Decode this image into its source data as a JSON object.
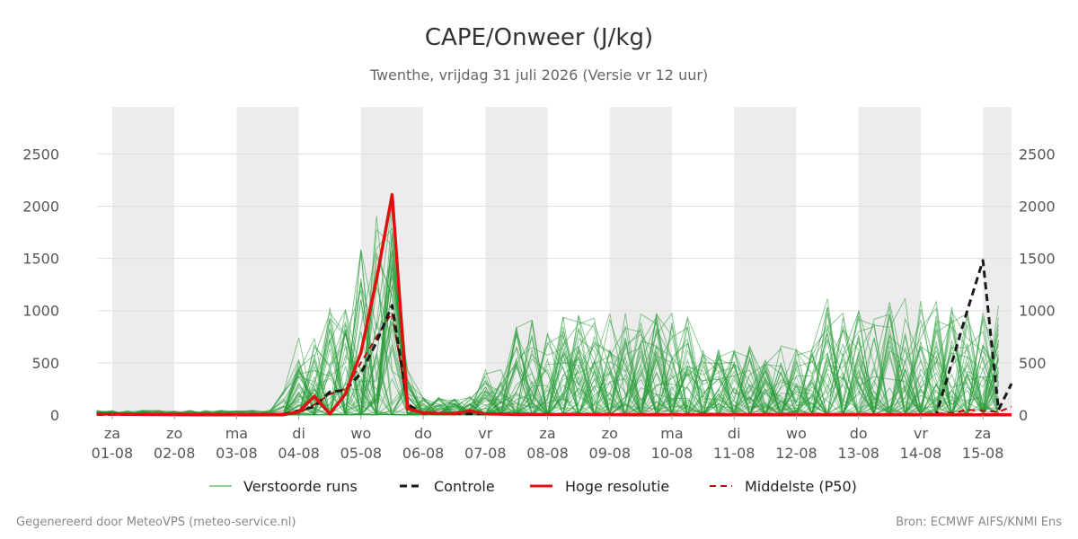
{
  "colors": {
    "band": "#ececec",
    "grid": "#dddddd",
    "member": "#2a9d3a",
    "control": "#1a1a1a",
    "hres": "#e01010",
    "median": "#b01010"
  },
  "footer": {
    "left": "Gegenereerd door MeteoVPS (meteo-service.nl)",
    "right": "Bron: ECMWF AIFS/KNMI Ens"
  },
  "chart_data": {
    "type": "line",
    "title": "CAPE/Onweer (J/kg)",
    "subtitle": "Twenthe, vrijdag 31 juli 2026 (Versie vr 12 uur)",
    "x_unit": "dag",
    "xlim": [
      -0.23,
      14.46
    ],
    "ylim": [
      0,
      2950
    ],
    "yticks": [
      0,
      500,
      1000,
      1500,
      2000,
      2500
    ],
    "grid": true,
    "legend_position": "bottom",
    "days": [
      {
        "day": "za",
        "date": "01-08"
      },
      {
        "day": "zo",
        "date": "02-08"
      },
      {
        "day": "ma",
        "date": "03-08"
      },
      {
        "day": "di",
        "date": "04-08"
      },
      {
        "day": "wo",
        "date": "05-08"
      },
      {
        "day": "do",
        "date": "06-08"
      },
      {
        "day": "vr",
        "date": "07-08"
      },
      {
        "day": "za",
        "date": "08-08"
      },
      {
        "day": "zo",
        "date": "09-08"
      },
      {
        "day": "ma",
        "date": "10-08"
      },
      {
        "day": "di",
        "date": "11-08"
      },
      {
        "day": "wo",
        "date": "12-08"
      },
      {
        "day": "do",
        "date": "13-08"
      },
      {
        "day": "vr",
        "date": "14-08"
      },
      {
        "day": "za",
        "date": "15-08"
      }
    ],
    "shaded_days": [
      0,
      2,
      4,
      6,
      8,
      10,
      12,
      14
    ],
    "legend": [
      "Verstoorde runs",
      "Controle",
      "Hoge resolutie",
      "Middelste (P50)"
    ],
    "series": [
      {
        "name": "Hoge resolutie",
        "points": [
          [
            -0.25,
            10
          ],
          [
            0.5,
            5
          ],
          [
            1.5,
            3
          ],
          [
            2.5,
            3
          ],
          [
            2.75,
            3
          ],
          [
            3.0,
            30
          ],
          [
            3.25,
            180
          ],
          [
            3.5,
            10
          ],
          [
            3.75,
            200
          ],
          [
            4.0,
            600
          ],
          [
            4.25,
            1300
          ],
          [
            4.5,
            2110
          ],
          [
            4.75,
            60
          ],
          [
            5.0,
            20
          ],
          [
            5.25,
            15
          ],
          [
            5.5,
            10
          ],
          [
            5.75,
            40
          ],
          [
            6.0,
            10
          ],
          [
            6.5,
            5
          ],
          [
            7.5,
            5
          ],
          [
            8.5,
            3
          ],
          [
            9.5,
            3
          ],
          [
            10.5,
            3
          ],
          [
            14.46,
            3
          ]
        ]
      },
      {
        "name": "Controle",
        "points": [
          [
            -0.25,
            5
          ],
          [
            2.75,
            5
          ],
          [
            3.25,
            80
          ],
          [
            3.5,
            220
          ],
          [
            3.75,
            240
          ],
          [
            4.0,
            400
          ],
          [
            4.25,
            700
          ],
          [
            4.5,
            1050
          ],
          [
            4.75,
            100
          ],
          [
            5.0,
            15
          ],
          [
            6.0,
            10
          ],
          [
            8.0,
            5
          ],
          [
            10.0,
            5
          ],
          [
            12.0,
            5
          ],
          [
            13.25,
            3
          ],
          [
            13.5,
            500
          ],
          [
            13.75,
            1000
          ],
          [
            14.0,
            1480
          ],
          [
            14.25,
            50
          ],
          [
            14.46,
            300
          ]
        ]
      },
      {
        "name": "Middelste (P50)",
        "points": [
          [
            -0.25,
            5
          ],
          [
            2.75,
            5
          ],
          [
            3.0,
            20
          ],
          [
            3.25,
            100
          ],
          [
            3.5,
            200
          ],
          [
            3.75,
            250
          ],
          [
            4.0,
            500
          ],
          [
            4.25,
            750
          ],
          [
            4.5,
            980
          ],
          [
            4.75,
            80
          ],
          [
            5.0,
            20
          ],
          [
            5.25,
            15
          ],
          [
            5.75,
            30
          ],
          [
            6.0,
            10
          ],
          [
            7.0,
            5
          ],
          [
            9.0,
            5
          ],
          [
            11.0,
            5
          ],
          [
            13.0,
            5
          ],
          [
            13.5,
            20
          ],
          [
            13.75,
            50
          ],
          [
            14.0,
            40
          ],
          [
            14.25,
            30
          ],
          [
            14.46,
            80
          ]
        ]
      }
    ]
  }
}
